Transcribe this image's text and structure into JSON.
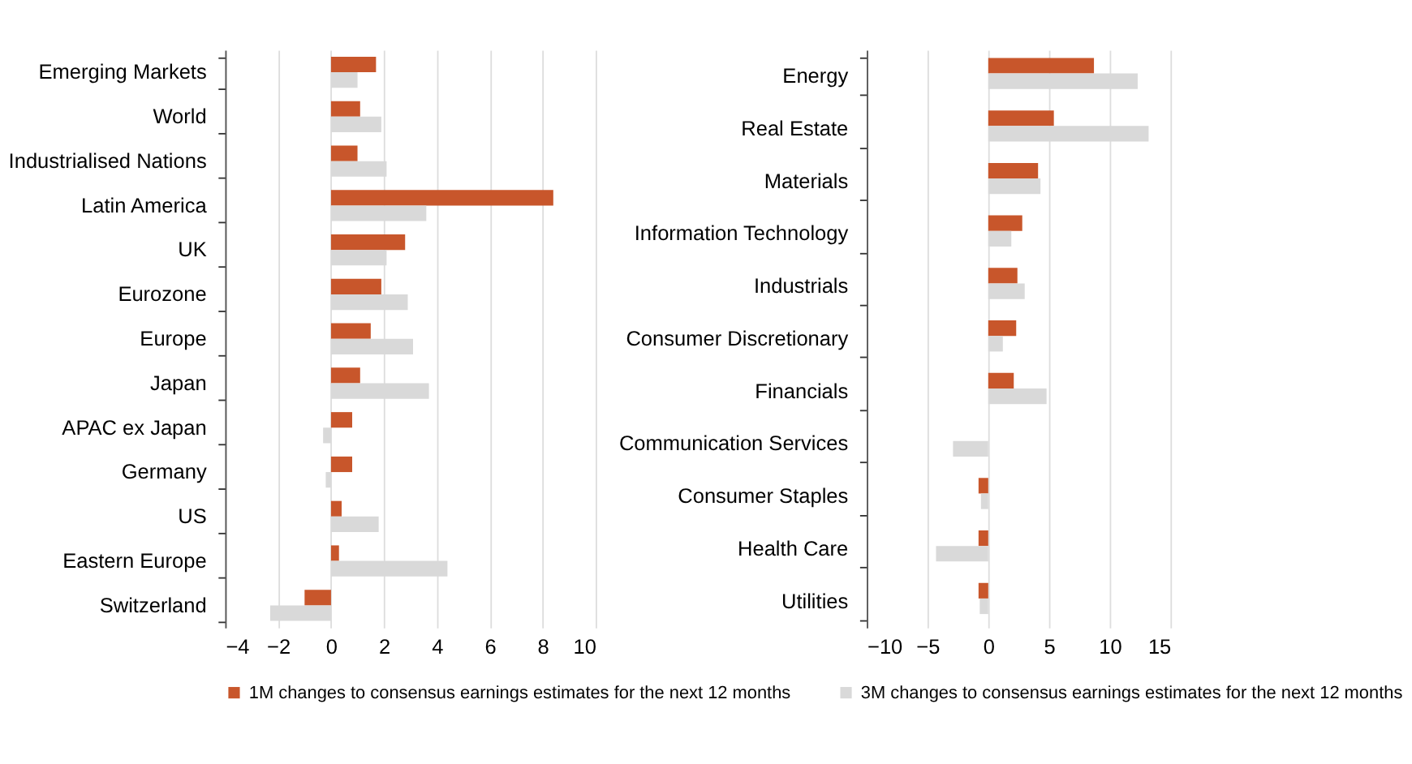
{
  "chart_data": [
    {
      "type": "bar",
      "orientation": "horizontal",
      "categories": [
        "Emerging Markets",
        "World",
        "Industrialised Nations",
        "Latin America",
        "UK",
        "Eurozone",
        "Europe",
        "Japan",
        "APAC ex Japan",
        "Germany",
        "US",
        "Eastern Europe",
        "Switzerland"
      ],
      "series": [
        {
          "name": "1M changes to consensus earnings estimates for the next 12 months",
          "color": "#c8562b",
          "values": [
            1.7,
            1.1,
            1.0,
            8.4,
            2.8,
            1.9,
            1.5,
            1.1,
            0.8,
            0.8,
            0.4,
            0.3,
            -1.0
          ]
        },
        {
          "name": "3M changes to consensus earnings estimates for the next 12 months",
          "color": "#d9d9d9",
          "values": [
            1.0,
            1.9,
            2.1,
            3.6,
            2.1,
            2.9,
            3.1,
            3.7,
            -0.3,
            -0.2,
            1.8,
            4.4,
            -2.3
          ]
        }
      ],
      "xlim": [
        -4,
        10
      ],
      "xticks": [
        -4,
        -2,
        0,
        2,
        4,
        6,
        8,
        10
      ],
      "grid": "x",
      "legend": "bottom"
    },
    {
      "type": "bar",
      "orientation": "horizontal",
      "categories": [
        "Energy",
        "Real Estate",
        "Materials",
        "Information Technology",
        "Industrials",
        "Consumer Discretionary",
        "Financials",
        "Communication Services",
        "Consumer Staples",
        "Health Care",
        "Utilities"
      ],
      "series": [
        {
          "name": "1M changes to consensus earnings estimates for the next 12 months",
          "color": "#c8562b",
          "values": [
            8.7,
            5.4,
            4.1,
            2.8,
            2.4,
            2.3,
            2.1,
            0.0,
            -0.8,
            -0.8,
            -0.8
          ]
        },
        {
          "name": "3M changes to consensus earnings estimates for the next 12 months",
          "color": "#d9d9d9",
          "values": [
            12.3,
            13.2,
            4.3,
            1.9,
            3.0,
            1.2,
            4.8,
            -2.9,
            -0.6,
            -4.3,
            -0.7
          ]
        }
      ],
      "xlim": [
        -10,
        15
      ],
      "xticks": [
        -10,
        -5,
        0,
        5,
        10,
        15
      ],
      "grid": "x",
      "legend": "bottom"
    }
  ]
}
